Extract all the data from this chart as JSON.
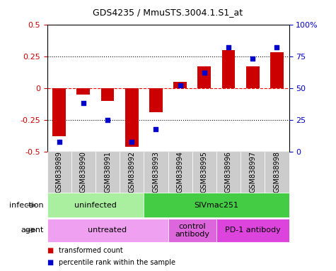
{
  "title": "GDS4235 / MmuSTS.3004.1.S1_at",
  "samples": [
    "GSM838989",
    "GSM838990",
    "GSM838991",
    "GSM838992",
    "GSM838993",
    "GSM838994",
    "GSM838995",
    "GSM838996",
    "GSM838997",
    "GSM838998"
  ],
  "bar_values": [
    -0.38,
    -0.05,
    -0.1,
    -0.46,
    -0.19,
    0.05,
    0.17,
    0.3,
    0.17,
    0.28
  ],
  "scatter_values": [
    8,
    38,
    25,
    8,
    18,
    52,
    62,
    82,
    73,
    82
  ],
  "bar_color": "#cc0000",
  "scatter_color": "#0000cc",
  "ylim_left": [
    -0.5,
    0.5
  ],
  "ylim_right": [
    0,
    100
  ],
  "yticks_left": [
    -0.5,
    -0.25,
    0,
    0.25,
    0.5
  ],
  "yticks_right": [
    0,
    25,
    50,
    75,
    100
  ],
  "ytick_labels_right": [
    "0",
    "25",
    "50",
    "75",
    "100%"
  ],
  "infection_groups": [
    {
      "label": "uninfected",
      "start": 0,
      "end": 3,
      "color": "#aaeea0"
    },
    {
      "label": "SIVmac251",
      "start": 4,
      "end": 9,
      "color": "#44cc44"
    }
  ],
  "agent_groups": [
    {
      "label": "untreated",
      "start": 0,
      "end": 4,
      "color": "#f0a0f0"
    },
    {
      "label": "control\nantibody",
      "start": 5,
      "end": 6,
      "color": "#dd66dd"
    },
    {
      "label": "PD-1 antibody",
      "start": 7,
      "end": 9,
      "color": "#dd44dd"
    }
  ],
  "legend_items": [
    {
      "label": "transformed count",
      "color": "#cc0000"
    },
    {
      "label": "percentile rank within the sample",
      "color": "#0000cc"
    }
  ],
  "infection_label": "infection",
  "agent_label": "agent"
}
